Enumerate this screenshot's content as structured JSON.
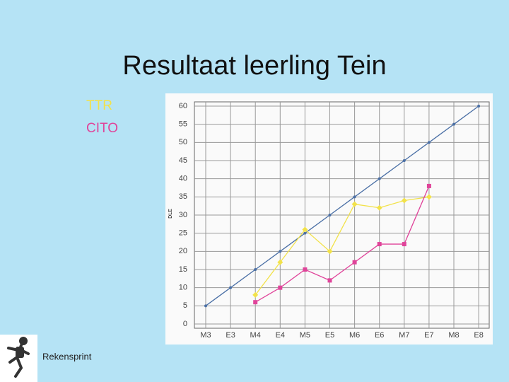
{
  "chart_data": {
    "type": "line",
    "title": "Resultaat leerling Tein",
    "y_label": "DLE",
    "categories": [
      "M3",
      "E3",
      "M4",
      "E4",
      "M5",
      "E5",
      "M6",
      "E6",
      "M7",
      "E7",
      "M8",
      "E8"
    ],
    "series": [
      {
        "color": "#4a6fa5",
        "marker": "dot",
        "values": [
          5,
          10,
          15,
          20,
          25,
          30,
          35,
          40,
          45,
          50,
          55,
          60
        ]
      },
      {
        "name": "TTR",
        "color": "#f2e24a",
        "marker": "diamond",
        "values": [
          null,
          null,
          8,
          17,
          26,
          20,
          33,
          32,
          34,
          35,
          null,
          null
        ]
      },
      {
        "name": "CITO",
        "color": "#e0449a",
        "marker": "square",
        "values": [
          null,
          null,
          6,
          10,
          15,
          12,
          17,
          22,
          22,
          38,
          null,
          null
        ]
      }
    ],
    "ylim": [
      0,
      60
    ],
    "yticks": [
      0,
      5,
      10,
      15,
      20,
      25,
      30,
      35,
      40,
      45,
      50,
      55,
      60
    ],
    "grid": true
  },
  "footer": {
    "text": "Rekensprint"
  }
}
